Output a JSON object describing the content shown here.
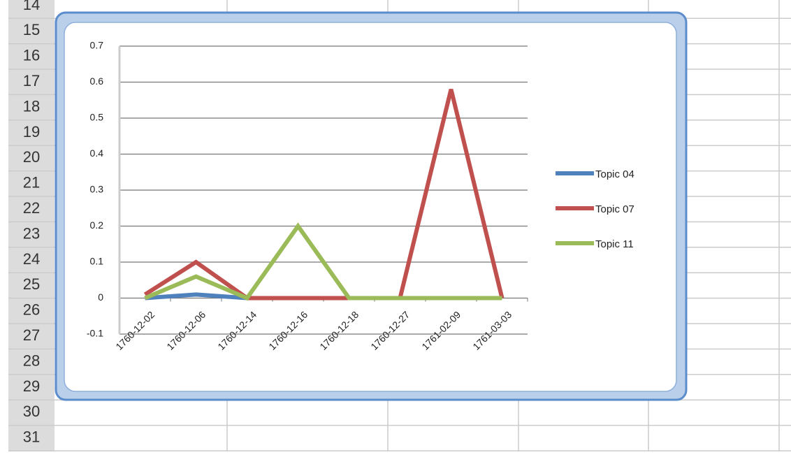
{
  "sheet": {
    "row_headers": [
      14,
      15,
      16,
      17,
      18,
      19,
      20,
      21,
      22,
      23,
      24,
      25,
      26,
      27,
      28,
      29,
      30,
      31
    ]
  },
  "chart_data": {
    "type": "line",
    "categories": [
      "1760-12-02",
      "1760-12-06",
      "1760-12-14",
      "1760-12-16",
      "1760-12-18",
      "1760-12-27",
      "1761-02-09",
      "1761-03-03"
    ],
    "series": [
      {
        "name": "Topic 04",
        "color": "#4f81bd",
        "values": [
          0,
          0.01,
          0,
          0,
          0,
          0,
          0,
          0
        ]
      },
      {
        "name": "Topic 07",
        "color": "#c0504d",
        "values": [
          0.01,
          0.1,
          0,
          0,
          0,
          0,
          0.58,
          0
        ]
      },
      {
        "name": "Topic 11",
        "color": "#9bbb59",
        "values": [
          0,
          0.06,
          0,
          0.2,
          0,
          0,
          0,
          0
        ]
      }
    ],
    "ylim": [
      -0.1,
      0.7
    ],
    "yticks": [
      -0.1,
      0,
      0.1,
      0.2,
      0.3,
      0.4,
      0.5,
      0.6,
      0.7
    ],
    "grid": true,
    "legend": "right"
  }
}
